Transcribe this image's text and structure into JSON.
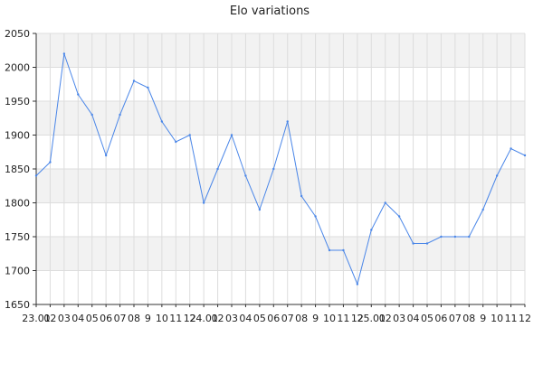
{
  "chart_data": {
    "type": "line",
    "title": "Elo variations",
    "xlabel": "",
    "ylabel": "",
    "ylim": [
      1650,
      2050
    ],
    "y_ticks": [
      1650,
      1700,
      1750,
      1800,
      1850,
      1900,
      1950,
      2000,
      2050
    ],
    "x_tick_labels": [
      "23.01",
      "02",
      "03",
      "04",
      "05",
      "06",
      "07",
      "08",
      "9",
      "10",
      "11",
      "12",
      "24.01",
      "02",
      "03",
      "04",
      "05",
      "06",
      "07",
      "08",
      "9",
      "10",
      "11",
      "12",
      "25.01",
      "02",
      "03",
      "04",
      "05",
      "06",
      "07",
      "08",
      "9",
      "10",
      "11",
      "12"
    ],
    "grid": true,
    "alternating_bands": true,
    "series": [
      {
        "values": [
          1840,
          1860,
          2020,
          1960,
          1930,
          1870,
          1930,
          1980,
          1970,
          1920,
          1890,
          1900,
          1800,
          1850,
          1900,
          1840,
          1790,
          1850,
          1920,
          1810,
          1780,
          1730,
          1730,
          1680,
          1760,
          1800,
          1780,
          1740,
          1740,
          1750,
          1750,
          1750,
          1790,
          1840,
          1880,
          1870
        ],
        "color": "#4a86e8"
      }
    ],
    "colors": {
      "band": "#f2f2f2",
      "grid": "#dddddd",
      "axis": "#333333"
    }
  }
}
